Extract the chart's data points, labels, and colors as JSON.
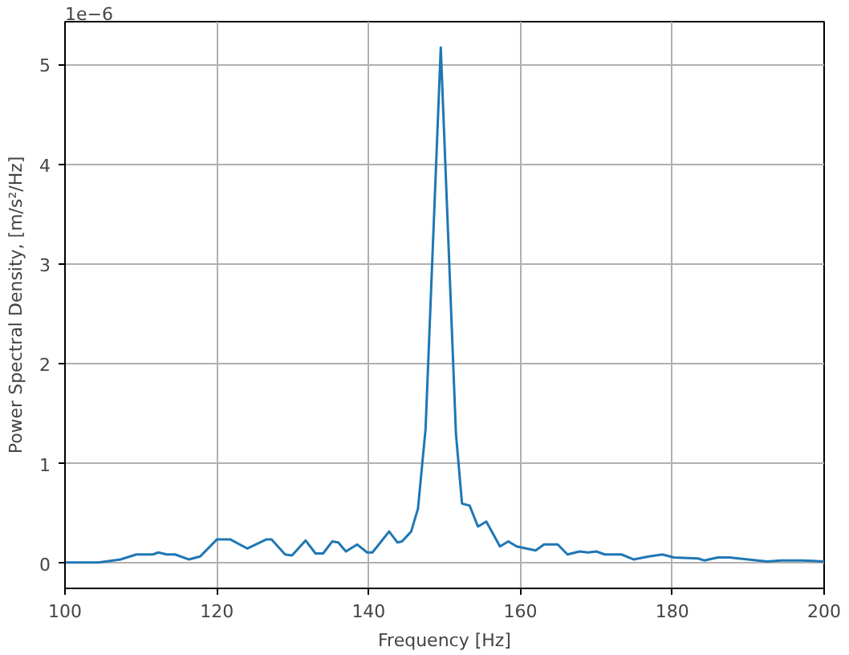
{
  "chart_data": {
    "type": "line",
    "xlabel": "Frequency [Hz]",
    "ylabel": "Power Spectral Density, [m/s²/Hz]",
    "annotations": [
      "1e−6"
    ],
    "x": [
      100,
      104.4,
      107.3,
      109.4,
      111.6,
      112.3,
      113.4,
      114.5,
      116.3,
      117.8,
      120,
      121.8,
      124,
      126.5,
      127.2,
      129,
      129.9,
      131.7,
      133,
      134,
      135.2,
      136,
      137,
      138.5,
      139.8,
      140.5,
      142.7,
      143.8,
      144.4,
      145.6,
      146.5,
      147.5,
      149.5,
      151.5,
      152.3,
      153.3,
      154.4,
      155.5,
      157.3,
      158.4,
      159.5,
      162,
      163.1,
      164.9,
      166.2,
      167.8,
      168.9,
      170,
      171.1,
      173.3,
      174.9,
      176.9,
      178.7,
      180.2,
      183.4,
      184.2,
      186,
      187.5,
      190,
      192.5,
      194.3,
      197.2,
      200
    ],
    "series": [
      {
        "color": "#1f77b4",
        "values": [
          0.01,
          0.01,
          0.04,
          0.09,
          0.09,
          0.11,
          0.09,
          0.09,
          0.04,
          0.07,
          0.24,
          0.24,
          0.15,
          0.24,
          0.24,
          0.09,
          0.08,
          0.23,
          0.1,
          0.1,
          0.22,
          0.21,
          0.12,
          0.19,
          0.11,
          0.11,
          0.32,
          0.21,
          0.22,
          0.32,
          0.55,
          1.35,
          5.17,
          1.3,
          0.6,
          0.58,
          0.37,
          0.42,
          0.17,
          0.22,
          0.17,
          0.13,
          0.19,
          0.19,
          0.09,
          0.12,
          0.11,
          0.12,
          0.09,
          0.09,
          0.04,
          0.07,
          0.09,
          0.06,
          0.05,
          0.03,
          0.06,
          0.06,
          0.04,
          0.02,
          0.03,
          0.03,
          0.02
        ]
      }
    ],
    "xlim": [
      100,
      200
    ],
    "ylim": [
      -0.25,
      5.43
    ],
    "xticks": [
      100,
      120,
      140,
      160,
      180,
      200
    ],
    "yticks": [
      0,
      1,
      2,
      3,
      4,
      5
    ],
    "grid": true,
    "line_style": "solid"
  }
}
